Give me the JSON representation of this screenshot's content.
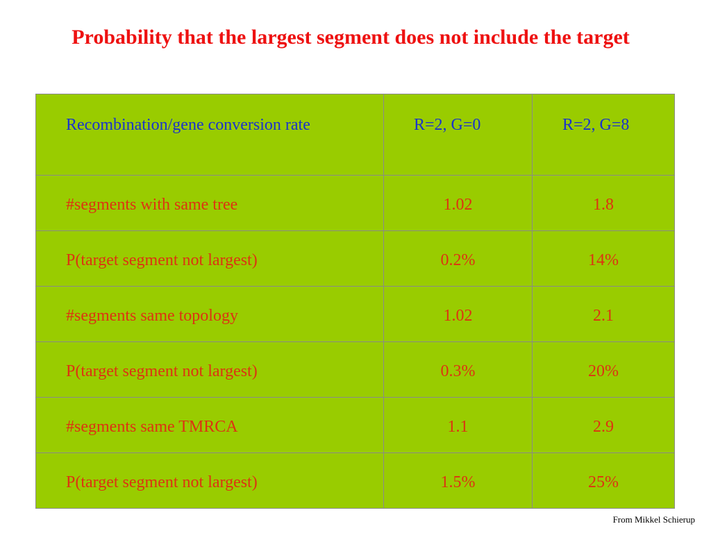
{
  "slide": {
    "title": "Probability that the largest segment does not include the target",
    "credit": "From Mikkel Schierup"
  },
  "table": {
    "header": [
      "Recombination/gene conversion rate",
      "R=2, G=0",
      "R=2, G=8"
    ],
    "rows": [
      [
        "#segments with same tree",
        "1.02",
        "1.8"
      ],
      [
        "P(target segment not largest)",
        "0.2%",
        "14%"
      ],
      [
        "#segments same topology",
        "1.02",
        "2.1"
      ],
      [
        "P(target segment not largest)",
        "0.3%",
        "20%"
      ],
      [
        "#segments same TMRCA",
        "1.1",
        "2.9"
      ],
      [
        "P(target segment not largest)",
        "1.5%",
        "25%"
      ]
    ]
  },
  "colors": {
    "title": "#ee1111",
    "table_background": "#99cc00",
    "header_text": "#1a33cc",
    "body_text": "#dd3311",
    "border": "#8a8a8a"
  }
}
